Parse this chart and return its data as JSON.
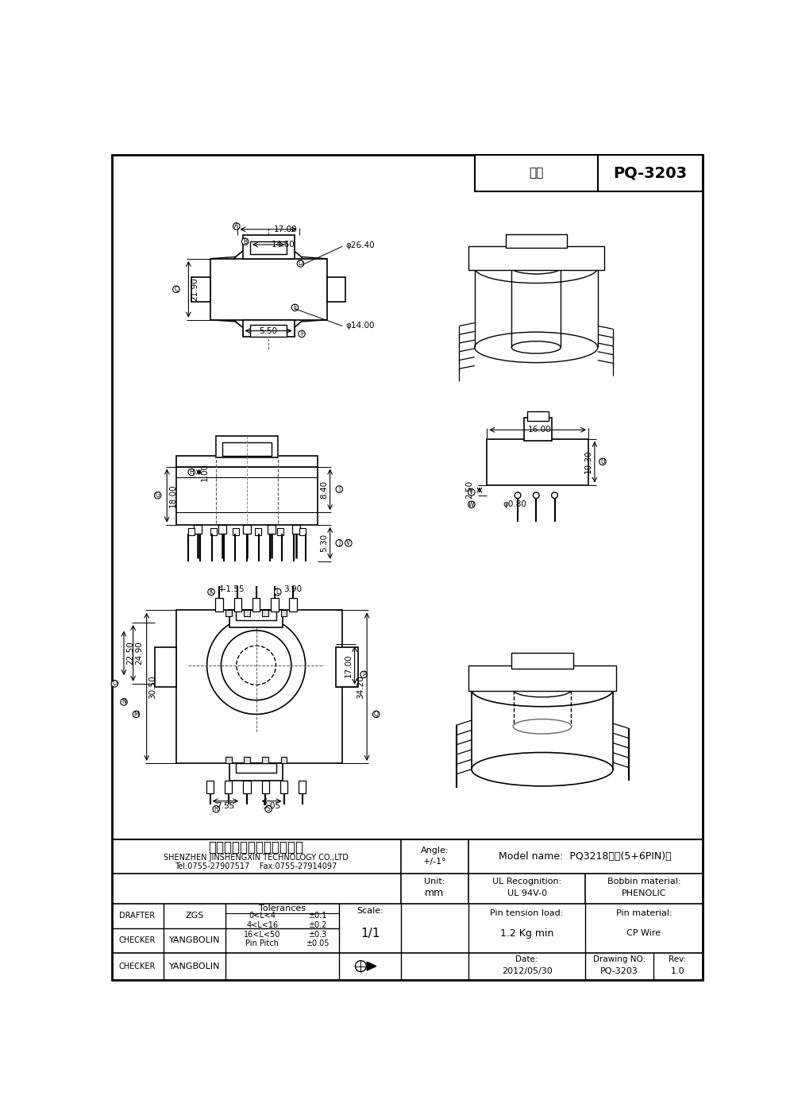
{
  "model_label": "型号",
  "model_number": "PQ-3203",
  "page_bg": "#ffffff",
  "company_cn": "深圳市金盛鑫科技有限公司",
  "company_en": "SHENZHEN JINSHENGXIN TECHNOLOGY CO.,LTD",
  "company_contact": "Tel:0755-27907517    Fax:0755-27914097",
  "angle_label": "Angle:",
  "angle_value": "+/-1°",
  "unit_label": "Unit:",
  "unit_value": "mm",
  "scale_label": "Scale:",
  "scale_value": "1/1",
  "model_name_label": "Model name:",
  "model_name_value": "PQ3218立式(5+6PIN)高",
  "ul_recognition_label": "UL Recognition:",
  "ul_recognition_value": "UL 94V-0",
  "bobbin_material_label": "Bobbin material:",
  "bobbin_material_value": "PHENOLIC",
  "tolerances_label": "Tolerances",
  "tol_rows": [
    [
      "0<L<4",
      "±0.1"
    ],
    [
      "4<L<16",
      "±0.2"
    ],
    [
      "16<L<50",
      "±0.3"
    ],
    [
      "Pin Pitch",
      "±0.05"
    ]
  ],
  "drafter_label": "DRAFTER",
  "drafter_value": "ZGS",
  "checker_label": "CHECKER",
  "checker_value": "YANGBOLIN",
  "pin_tension_label": "Pin tension load:",
  "pin_tension_value": "1.2 Kg min",
  "pin_material_label": "Pin material:",
  "pin_material_value": "CP Wire",
  "date_label": "Date:",
  "date_value": "2012/05/30",
  "drawing_no_label": "Drawing NO:",
  "drawing_no_value": "PQ-3203",
  "rev_label": "Rev:",
  "rev_value": "1.0"
}
